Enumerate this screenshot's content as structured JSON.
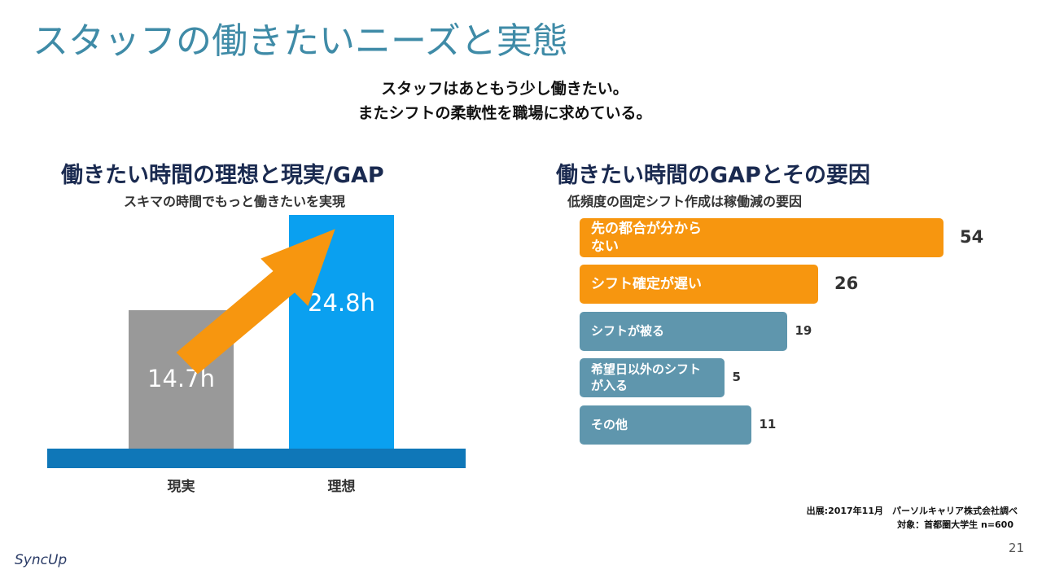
{
  "header": {
    "title": "スタッフの働きたいニーズと実態",
    "message": [
      "スタッフはあともう少し働きたい。",
      "またシフトの柔軟性を職場に求めている。"
    ]
  },
  "chart_data": [
    {
      "type": "bar",
      "orientation": "vertical",
      "title": "働きたい時間の理想と現実/GAP",
      "subtitle": "スキマの時間でもっと働きたいを実現",
      "categories": [
        "現実",
        "理想"
      ],
      "values": [
        14.7,
        24.8
      ],
      "value_labels": [
        "14.7h",
        "24.8h"
      ],
      "colors": [
        "#999999",
        "#0aa0f0"
      ]
    },
    {
      "type": "bar",
      "orientation": "horizontal",
      "title": "働きたい時間のGAPとその要因",
      "subtitle": "低頻度の固定シフト作成は稼働減の要因",
      "categories": [
        "先の都合が分からない",
        "シフト確定が遅い",
        "シフトが被る",
        "希望日以外のシフトが入る",
        "その他"
      ],
      "values": [
        54,
        26,
        19,
        5,
        11
      ],
      "colors": [
        "#f7960f",
        "#f7960f",
        "#5f96ad",
        "#5f96ad",
        "#5f96ad"
      ]
    }
  ],
  "footer": {
    "source": "出展:2017年11月　パーソルキャリア株式会社調べ",
    "target": "対象：首都圏大学生 n=600",
    "logo": "SyncUp",
    "page": "21"
  }
}
